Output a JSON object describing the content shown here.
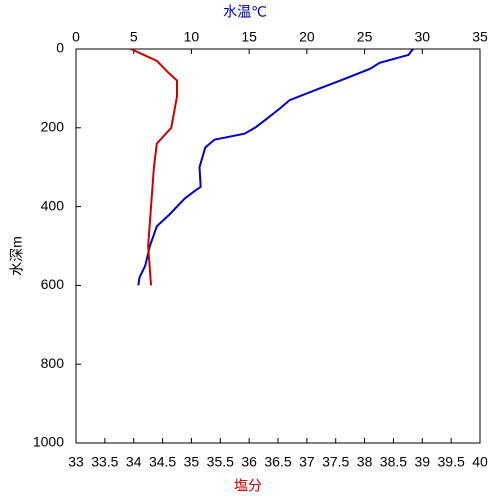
{
  "chart_data": {
    "type": "line",
    "x_label": "塩分",
    "x2_label": "水温℃",
    "y_label": "水深m",
    "x_label_color": "#cc0000",
    "x2_label_color": "#0000aa",
    "xlim": [
      33,
      40
    ],
    "xticks": [
      33,
      33.5,
      34,
      34.5,
      35,
      35.5,
      36,
      36.5,
      37,
      37.5,
      38,
      38.5,
      39,
      39.5,
      40
    ],
    "x2lim": [
      0,
      35
    ],
    "x2ticks": [
      0,
      5,
      10,
      15,
      20,
      25,
      30,
      35
    ],
    "ylim": [
      0,
      1000
    ],
    "yticks": [
      0,
      200,
      400,
      600,
      800,
      1000
    ],
    "y_inverted": true,
    "series": [
      {
        "name": "水温",
        "color": "#0000cc",
        "axis": "x2",
        "x": [
          29.2,
          28.8,
          26.3,
          25.5,
          22.9,
          21.1,
          18.5,
          17.7,
          16.4,
          15.5,
          14.6,
          12.0,
          11.2,
          10.7,
          10.8,
          10.3,
          9.4,
          8.1,
          7.0,
          6.4,
          6.0,
          5.5,
          5.4
        ],
        "y": [
          0,
          15,
          35,
          50,
          80,
          100,
          130,
          150,
          180,
          200,
          215,
          230,
          250,
          300,
          350,
          360,
          380,
          420,
          450,
          500,
          550,
          580,
          600
        ]
      },
      {
        "name": "塩分",
        "color": "#cc0000",
        "x": [
          33.95,
          34.1,
          34.4,
          34.6,
          34.75,
          34.75,
          34.7,
          34.65,
          34.4,
          34.35,
          34.3,
          34.25,
          34.3
        ],
        "y": [
          0,
          10,
          30,
          60,
          80,
          120,
          160,
          200,
          240,
          300,
          400,
          500,
          600
        ]
      }
    ]
  }
}
